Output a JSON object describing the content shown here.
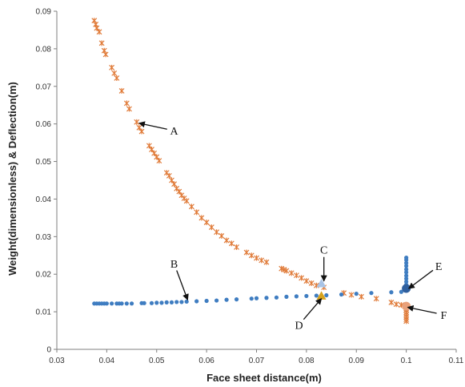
{
  "chart_data": {
    "type": "scatter",
    "title": "",
    "xlabel": "Face sheet distance(m)",
    "ylabel": "Weight(dimensionless) & Deflection(m)",
    "xlim": [
      0.03,
      0.11
    ],
    "ylim": [
      0,
      0.09
    ],
    "x_ticks": [
      "0.03",
      "0.04",
      "0.05",
      "0.06",
      "0.07",
      "0.08",
      "0.09",
      "0.1",
      "0.11"
    ],
    "y_ticks": [
      "0",
      "0.01",
      "0.02",
      "0.03",
      "0.04",
      "0.05",
      "0.06",
      "0.07",
      "0.08",
      "0.09"
    ],
    "grid": false,
    "legend": "none",
    "series": [
      {
        "marker": "asterisk",
        "color": "#E07B39",
        "points": [
          [
            0.0375,
            0.0875
          ],
          [
            0.0378,
            0.0865
          ],
          [
            0.038,
            0.0855
          ],
          [
            0.0385,
            0.0845
          ],
          [
            0.039,
            0.0815
          ],
          [
            0.0395,
            0.0795
          ],
          [
            0.0398,
            0.0785
          ],
          [
            0.041,
            0.075
          ],
          [
            0.0415,
            0.0735
          ],
          [
            0.042,
            0.0722
          ],
          [
            0.043,
            0.0688
          ],
          [
            0.044,
            0.0655
          ],
          [
            0.0445,
            0.064
          ],
          [
            0.046,
            0.0605
          ],
          [
            0.0465,
            0.059
          ],
          [
            0.047,
            0.058
          ],
          [
            0.0485,
            0.0542
          ],
          [
            0.049,
            0.0532
          ],
          [
            0.0495,
            0.0522
          ],
          [
            0.05,
            0.0512
          ],
          [
            0.0505,
            0.0502
          ],
          [
            0.052,
            0.047
          ],
          [
            0.0525,
            0.0462
          ],
          [
            0.053,
            0.045
          ],
          [
            0.0535,
            0.044
          ],
          [
            0.054,
            0.0428
          ],
          [
            0.0545,
            0.042
          ],
          [
            0.055,
            0.041
          ],
          [
            0.0555,
            0.0402
          ],
          [
            0.056,
            0.0395
          ],
          [
            0.057,
            0.038
          ],
          [
            0.058,
            0.0365
          ],
          [
            0.059,
            0.035
          ],
          [
            0.06,
            0.0338
          ],
          [
            0.061,
            0.0325
          ],
          [
            0.062,
            0.0312
          ],
          [
            0.063,
            0.0302
          ],
          [
            0.064,
            0.029
          ],
          [
            0.065,
            0.0282
          ],
          [
            0.066,
            0.0272
          ],
          [
            0.068,
            0.0258
          ],
          [
            0.069,
            0.025
          ],
          [
            0.07,
            0.0243
          ],
          [
            0.071,
            0.0237
          ],
          [
            0.072,
            0.0232
          ],
          [
            0.075,
            0.0215
          ],
          [
            0.0755,
            0.0212
          ],
          [
            0.076,
            0.0209
          ],
          [
            0.077,
            0.0203
          ],
          [
            0.078,
            0.0197
          ],
          [
            0.079,
            0.019
          ],
          [
            0.08,
            0.0182
          ],
          [
            0.081,
            0.0176
          ],
          [
            0.082,
            0.017
          ],
          [
            0.0835,
            0.0165
          ],
          [
            0.0875,
            0.015
          ],
          [
            0.089,
            0.0145
          ],
          [
            0.091,
            0.014
          ],
          [
            0.094,
            0.0135
          ],
          [
            0.097,
            0.0125
          ],
          [
            0.098,
            0.012
          ],
          [
            0.099,
            0.0118
          ],
          [
            0.0997,
            0.0115
          ],
          [
            0.1,
            0.0112
          ],
          [
            0.1,
            0.0105
          ],
          [
            0.1,
            0.0098
          ],
          [
            0.1,
            0.0092
          ],
          [
            0.1,
            0.0086
          ],
          [
            0.1,
            0.008
          ],
          [
            0.1,
            0.0075
          ]
        ]
      },
      {
        "marker": "dot",
        "color": "#3F7DC1",
        "points": [
          [
            0.0375,
            0.0122
          ],
          [
            0.038,
            0.0122
          ],
          [
            0.0385,
            0.0122
          ],
          [
            0.039,
            0.0122
          ],
          [
            0.0395,
            0.0122
          ],
          [
            0.04,
            0.0122
          ],
          [
            0.041,
            0.0122
          ],
          [
            0.042,
            0.0122
          ],
          [
            0.0425,
            0.0122
          ],
          [
            0.043,
            0.0122
          ],
          [
            0.044,
            0.0122
          ],
          [
            0.045,
            0.0122
          ],
          [
            0.047,
            0.0123
          ],
          [
            0.0475,
            0.0123
          ],
          [
            0.049,
            0.0123
          ],
          [
            0.05,
            0.0124
          ],
          [
            0.051,
            0.0124
          ],
          [
            0.052,
            0.0125
          ],
          [
            0.053,
            0.0125
          ],
          [
            0.054,
            0.0126
          ],
          [
            0.055,
            0.0126
          ],
          [
            0.056,
            0.0127
          ],
          [
            0.058,
            0.0128
          ],
          [
            0.06,
            0.0129
          ],
          [
            0.062,
            0.013
          ],
          [
            0.064,
            0.0132
          ],
          [
            0.066,
            0.0133
          ],
          [
            0.069,
            0.0135
          ],
          [
            0.07,
            0.0136
          ],
          [
            0.072,
            0.0137
          ],
          [
            0.074,
            0.0138
          ],
          [
            0.076,
            0.014
          ],
          [
            0.078,
            0.0141
          ],
          [
            0.08,
            0.0142
          ],
          [
            0.082,
            0.0143
          ],
          [
            0.084,
            0.0144
          ],
          [
            0.087,
            0.0146
          ],
          [
            0.09,
            0.0148
          ],
          [
            0.093,
            0.015
          ],
          [
            0.097,
            0.0152
          ],
          [
            0.099,
            0.0153
          ],
          [
            0.1,
            0.0158
          ],
          [
            0.1,
            0.0165
          ],
          [
            0.1,
            0.0172
          ],
          [
            0.1,
            0.018
          ],
          [
            0.1,
            0.0188
          ],
          [
            0.1,
            0.0196
          ],
          [
            0.1,
            0.0205
          ],
          [
            0.1,
            0.0213
          ],
          [
            0.1,
            0.0222
          ],
          [
            0.1,
            0.023
          ],
          [
            0.1,
            0.0238
          ],
          [
            0.1,
            0.0244
          ]
        ]
      }
    ],
    "highlight_points": [
      {
        "label": "C",
        "marker": "triangle",
        "color": "#A9C4E6",
        "x": 0.083,
        "y": 0.0175
      },
      {
        "label": "D",
        "marker": "triangle",
        "color": "#D6A21E",
        "x": 0.083,
        "y": 0.0142
      },
      {
        "label": "E",
        "marker": "circle",
        "color": "#2F5F9E",
        "x": 0.1,
        "y": 0.0162
      },
      {
        "label": "F",
        "marker": "circle",
        "color": "#E8A07A",
        "x": 0.1,
        "y": 0.0115
      }
    ],
    "annotations": [
      {
        "label": "A",
        "text_x": 0.0535,
        "text_y": 0.0582,
        "arrow_to_x": 0.0465,
        "arrow_to_y": 0.0602
      },
      {
        "label": "B",
        "text_x": 0.0535,
        "text_y": 0.0228,
        "arrow_to_x": 0.0562,
        "arrow_to_y": 0.0132
      },
      {
        "label": "C",
        "text_x": 0.0835,
        "text_y": 0.0265,
        "arrow_to_x": 0.0835,
        "arrow_to_y": 0.0182
      },
      {
        "label": "D",
        "text_x": 0.0785,
        "text_y": 0.0065,
        "arrow_to_x": 0.083,
        "arrow_to_y": 0.0135
      },
      {
        "label": "E",
        "text_x": 0.1065,
        "text_y": 0.0222,
        "arrow_to_x": 0.1005,
        "arrow_to_y": 0.0162
      },
      {
        "label": "F",
        "text_x": 0.1075,
        "text_y": 0.0092,
        "arrow_to_x": 0.1003,
        "arrow_to_y": 0.0112
      }
    ]
  }
}
